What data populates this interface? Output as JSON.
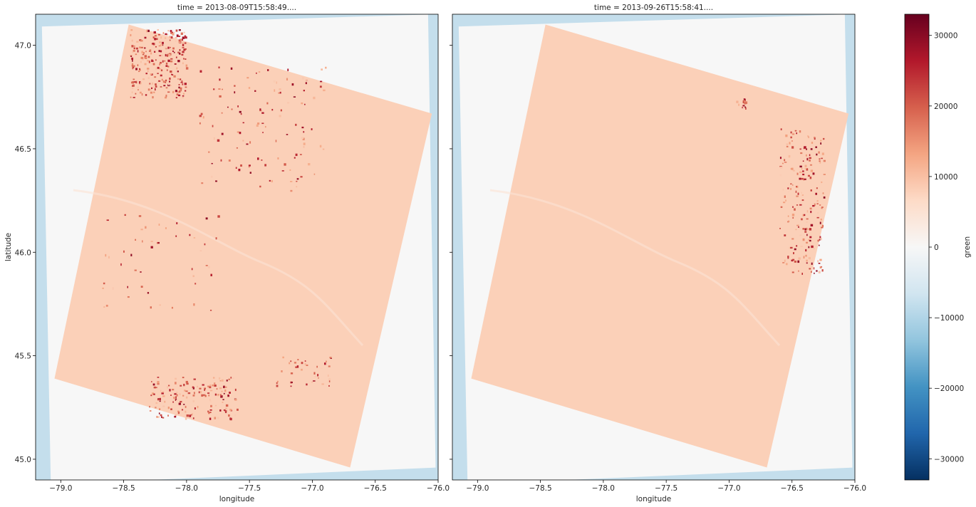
{
  "chart_data": {
    "type": "heatmap",
    "panels": [
      {
        "title": "time = 2013-08-09T15:58:49...."
      },
      {
        "title": "time = 2013-09-26T15:58:41...."
      }
    ],
    "xlabel": "longitude",
    "ylabel": "latitude",
    "xlim": [
      -79.2,
      -76.0
    ],
    "ylim": [
      44.9,
      47.15
    ],
    "xticks": [
      -79.0,
      -78.5,
      -78.0,
      -77.5,
      -77.0,
      -76.5,
      -76.0
    ],
    "xtick_labels": [
      "−79.0",
      "−78.5",
      "−78.0",
      "−77.5",
      "−77.0",
      "−76.5",
      "−76.0"
    ],
    "yticks": [
      45.0,
      45.5,
      46.0,
      46.5,
      47.0
    ],
    "ytick_labels": [
      "45.0",
      "45.5",
      "46.0",
      "46.5",
      "47.0"
    ],
    "colorbar": {
      "label": "green",
      "range": [
        -33000,
        33000
      ],
      "ticks": [
        30000,
        20000,
        10000,
        0,
        -10000,
        -20000,
        -30000
      ],
      "tick_labels": [
        "30000",
        "20000",
        "10000",
        "0",
        "−10000",
        "−20000",
        "−30000"
      ],
      "colormap": "RdBu_r"
    },
    "scene_values": {
      "nodata_value": 0,
      "edge_value": -8000,
      "typical_land_value": 8000,
      "hotspot_value": 30000
    },
    "scene_footprint_corners": [
      {
        "lon": -78.46,
        "lat": 47.1
      },
      {
        "lon": -76.05,
        "lat": 46.67
      },
      {
        "lon": -76.7,
        "lat": 44.96
      },
      {
        "lon": -79.05,
        "lat": 45.39
      }
    ]
  }
}
